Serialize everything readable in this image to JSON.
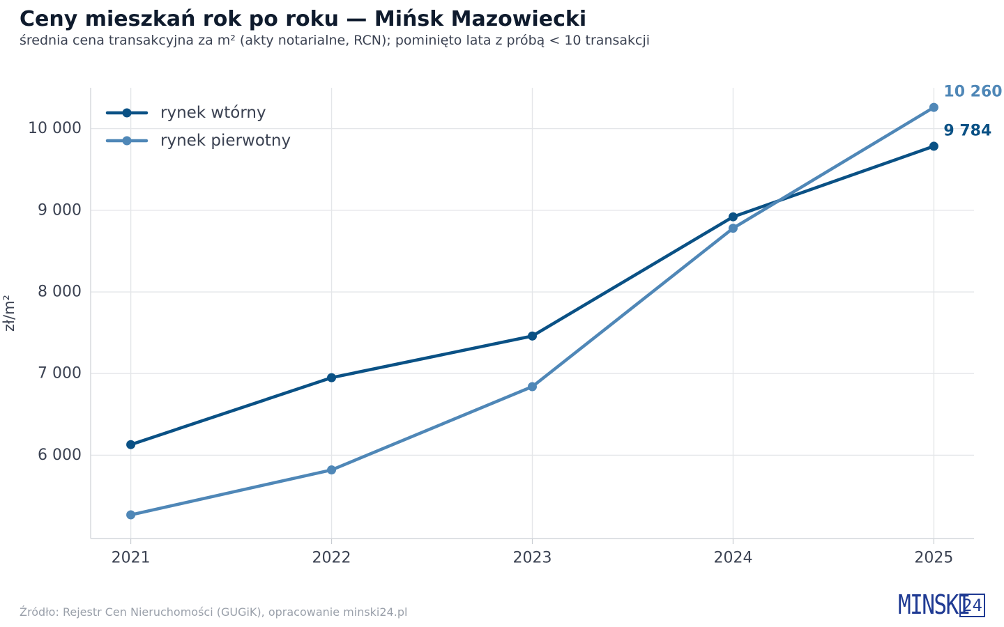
{
  "title": "Ceny mieszkań rok po roku — Mińsk Mazowiecki",
  "subtitle": "średnia cena transakcyjna za m² (akty notarialne, RCN); pominięto lata z próbą < 10 transakcji",
  "source": "Źródło: Rejestr Cen Nieruchomości (GUGiK), opracowanie minski24.pl",
  "brand": {
    "name": "MINSKI",
    "number": "24"
  },
  "colors": {
    "secondary": "#0a5185",
    "primary": "#4f87b7",
    "grid": "#e4e6e9",
    "text": "#3b4252"
  },
  "chart_data": {
    "type": "line",
    "title": "Ceny mieszkań rok po roku — Mińsk Mazowiecki",
    "subtitle": "średnia cena transakcyjna za m² (akty notarialne, RCN); pominięto lata z próbą < 10 transakcji",
    "xlabel": "",
    "ylabel": "zł/m²",
    "x": [
      2021,
      2022,
      2023,
      2024,
      2025
    ],
    "x_tick_labels": [
      "2021",
      "2022",
      "2023",
      "2024",
      "2025"
    ],
    "xlim": [
      2020.8,
      2025.2
    ],
    "ylim": [
      4980,
      10500
    ],
    "y_ticks": [
      6000,
      7000,
      8000,
      9000,
      10000
    ],
    "y_tick_labels": [
      "6 000",
      "7 000",
      "8 000",
      "9 000",
      "10 000"
    ],
    "grid": true,
    "legend_position": "top-left",
    "series": [
      {
        "name": "rynek wtórny",
        "color": "#0a5185",
        "values": [
          6130,
          6950,
          7460,
          8920,
          9784
        ],
        "end_label": "9 784"
      },
      {
        "name": "rynek pierwotny",
        "color": "#4f87b7",
        "values": [
          5270,
          5820,
          6840,
          8780,
          10260
        ],
        "end_label": "10 260"
      }
    ]
  }
}
